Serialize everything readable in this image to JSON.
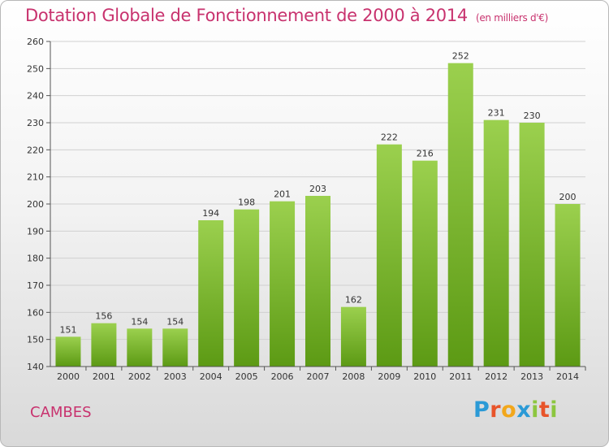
{
  "title": "Dotation Globale de Fonctionnement de 2000 à 2014",
  "subtitle": "(en milliers d'€)",
  "place": "CAMBES",
  "brand": {
    "letters": [
      "P",
      "r",
      "o",
      "x",
      "i",
      "t",
      "i"
    ],
    "colors": [
      "#2b9ad6",
      "#e8542a",
      "#f2a71b",
      "#2b9ad6",
      "#8cc63f",
      "#e8542a",
      "#8cc63f"
    ]
  },
  "colors": {
    "bar_top": "#9bd04e",
    "bar_bottom": "#5c9a14",
    "title": "#c8326e",
    "grid": "#d0d0d0"
  },
  "chart_data": {
    "type": "bar",
    "title": "Dotation Globale de Fonctionnement de 2000 à 2014",
    "subtitle": "(en milliers d'€)",
    "categories": [
      "2000",
      "2001",
      "2002",
      "2003",
      "2004",
      "2005",
      "2006",
      "2007",
      "2008",
      "2009",
      "2010",
      "2011",
      "2012",
      "2013",
      "2014"
    ],
    "values": [
      151,
      156,
      154,
      154,
      194,
      198,
      201,
      203,
      162,
      222,
      216,
      252,
      231,
      230,
      200
    ],
    "ylim": [
      140,
      260
    ],
    "yticks": [
      140,
      150,
      160,
      170,
      180,
      190,
      200,
      210,
      220,
      230,
      240,
      250,
      260
    ],
    "grid": true,
    "legend": "none"
  }
}
